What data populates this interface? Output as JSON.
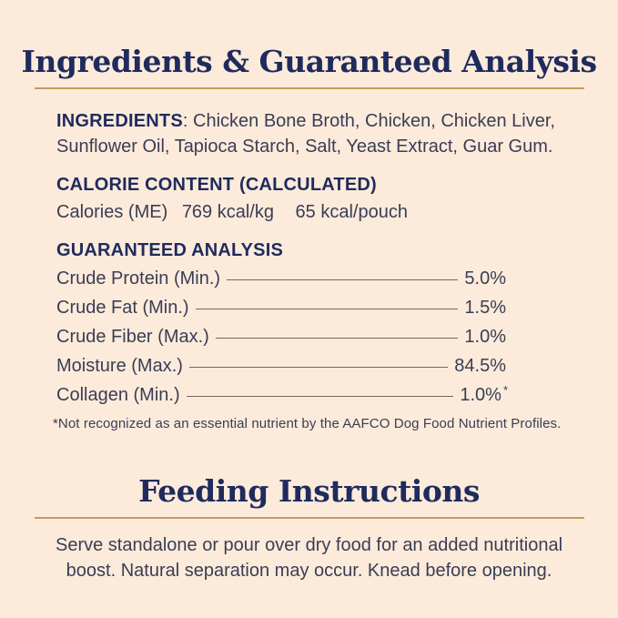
{
  "colors": {
    "background": "#fcebdb",
    "heading_navy": "#1f2b5c",
    "body_text": "#3a3d55",
    "gold_rule": "#c49a5d",
    "leader_line": "#6f6a62"
  },
  "header": {
    "title": "Ingredients & Guaranteed Analysis"
  },
  "ingredients": {
    "label": "INGREDIENTS",
    "text": ": Chicken Bone Broth, Chicken, Chicken Liver, Sunflower Oil, Tapioca Starch, Salt, Yeast Extract, Guar Gum."
  },
  "calorie": {
    "heading": "CALORIE CONTENT (CALCULATED)",
    "label": "Calories (ME)",
    "per_kg": "769 kcal/kg",
    "per_pouch": "65 kcal/pouch"
  },
  "analysis": {
    "heading": "GUARANTEED ANALYSIS",
    "rows": [
      {
        "label": "Crude Protein (Min.)",
        "value": "5.0%",
        "marker": ""
      },
      {
        "label": "Crude Fat (Min.)",
        "value": "1.5%",
        "marker": ""
      },
      {
        "label": "Crude Fiber (Max.)",
        "value": "1.0%",
        "marker": ""
      },
      {
        "label": "Moisture (Max.)",
        "value": "84.5%",
        "marker": ""
      },
      {
        "label": "Collagen (Min.)",
        "value": "1.0%",
        "marker": "*"
      }
    ],
    "footnote": "*Not recognized as an essential nutrient by the AAFCO Dog Food Nutrient Profiles."
  },
  "feeding": {
    "title": "Feeding Instructions",
    "body": "Serve standalone or pour over dry food for an added nutritional boost. Natural separation may occur. Knead before opening."
  }
}
